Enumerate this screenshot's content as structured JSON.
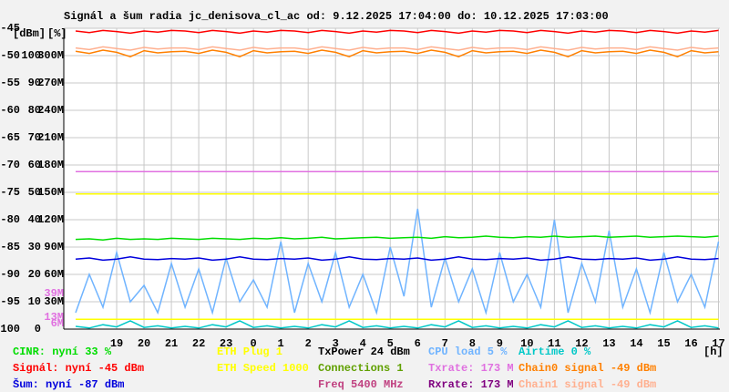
{
  "chart_data": {
    "type": "line",
    "title": "Signál a šum radia jc_denisova_cl_ac od: 9.12.2025 17:04:00 do: 10.12.2025 17:03:00",
    "y_unit_labels": [
      "[dBm]",
      "[%]"
    ],
    "x_unit_label": "[h]",
    "xlim": [
      17.067,
      41.05
    ],
    "xticks": [
      19,
      20,
      21,
      22,
      23,
      {
        "value": 24,
        "label": "0"
      },
      {
        "value": 25,
        "label": "1"
      },
      {
        "value": 26,
        "label": "2"
      },
      {
        "value": 27,
        "label": "3"
      },
      {
        "value": 28,
        "label": "4"
      },
      {
        "value": 29,
        "label": "5"
      },
      {
        "value": 30,
        "label": "6"
      },
      {
        "value": 31,
        "label": "7"
      },
      {
        "value": 32,
        "label": "8"
      },
      {
        "value": 33,
        "label": "9"
      },
      {
        "value": 34,
        "label": "10"
      },
      {
        "value": 35,
        "label": "11"
      },
      {
        "value": 36,
        "label": "12"
      },
      {
        "value": 37,
        "label": "13"
      },
      {
        "value": 38,
        "label": "14"
      },
      {
        "value": 39,
        "label": "15"
      },
      {
        "value": 40,
        "label": "16"
      },
      {
        "value": 41,
        "label": "17"
      }
    ],
    "ylim": [
      -100,
      -45
    ],
    "yticks": [
      -100,
      -95,
      -90,
      -85,
      -80,
      -75,
      -70,
      -65,
      -60,
      -55,
      -50,
      -45
    ],
    "y2lim": [
      0,
      110
    ],
    "y2ticks": [
      0,
      10,
      20,
      30,
      40,
      50,
      60,
      70,
      80,
      90,
      100
    ],
    "y3lim": [
      0,
      330
    ],
    "y3ticks": [
      {
        "value": 30,
        "label": "30M"
      },
      {
        "value": 60,
        "label": "60M"
      },
      {
        "value": 90,
        "label": "90M"
      },
      {
        "value": 120,
        "label": "120M"
      },
      {
        "value": 150,
        "label": "150M"
      },
      {
        "value": 180,
        "label": "180M"
      },
      {
        "value": 210,
        "label": "210M"
      },
      {
        "value": 240,
        "label": "240M"
      },
      {
        "value": 270,
        "label": "270M"
      },
      {
        "value": 300,
        "label": "300M"
      }
    ],
    "y3_markers": [
      {
        "value": 39,
        "label": "39M"
      },
      {
        "value": 13,
        "label": "13M"
      },
      {
        "value": 6,
        "label": "6M"
      }
    ],
    "y3_marker_color": "#e070e0",
    "grid": true,
    "x": [
      17.5,
      18,
      18.5,
      19,
      19.5,
      20,
      20.5,
      21,
      21.5,
      22,
      22.5,
      23,
      23.5,
      24,
      24.5,
      25,
      25.5,
      26,
      26.5,
      27,
      27.5,
      28,
      28.5,
      29,
      29.5,
      30,
      30.5,
      31,
      31.5,
      32,
      32.5,
      33,
      33.5,
      34,
      34.5,
      35,
      35.5,
      36,
      36.5,
      37,
      37.5,
      38,
      38.5,
      39,
      39.5,
      40,
      40.5,
      41
    ],
    "series": [
      {
        "name": "CINR: nyní 33 %",
        "color": "#00dd00",
        "values": [
          -83.6,
          -83.5,
          -83.7,
          -83.4,
          -83.6,
          -83.5,
          -83.6,
          -83.4,
          -83.5,
          -83.6,
          -83.4,
          -83.5,
          -83.6,
          -83.4,
          -83.5,
          -83.3,
          -83.5,
          -83.4,
          -83.2,
          -83.5,
          -83.4,
          -83.3,
          -83.2,
          -83.4,
          -83.3,
          -83.2,
          -83.4,
          -83.1,
          -83.3,
          -83.2,
          -83.0,
          -83.2,
          -83.3,
          -83.1,
          -83.2,
          -83.0,
          -83.2,
          -83.1,
          -83.0,
          -83.2,
          -83.1,
          -83.0,
          -83.2,
          -83.1,
          -83.0,
          -83.1,
          -83.2,
          -83.0
        ]
      },
      {
        "name": "Signál: nyní -45 dBm",
        "color": "#ff0000",
        "values": [
          -45.5,
          -45.8,
          -45.4,
          -45.6,
          -45.9,
          -45.5,
          -45.7,
          -45.4,
          -45.5,
          -45.8,
          -45.4,
          -45.6,
          -45.9,
          -45.5,
          -45.7,
          -45.4,
          -45.5,
          -45.8,
          -45.4,
          -45.6,
          -45.9,
          -45.5,
          -45.7,
          -45.4,
          -45.5,
          -45.8,
          -45.4,
          -45.6,
          -45.9,
          -45.5,
          -45.7,
          -45.4,
          -45.5,
          -45.8,
          -45.4,
          -45.6,
          -45.9,
          -45.5,
          -45.7,
          -45.4,
          -45.5,
          -45.8,
          -45.4,
          -45.6,
          -45.9,
          -45.5,
          -45.7,
          -45.4
        ]
      },
      {
        "name": "Šum: nyní -87 dBm",
        "color": "#0000dd",
        "values": [
          -87.2,
          -87.0,
          -87.4,
          -87.2,
          -86.8,
          -87.2,
          -87.3,
          -87.1,
          -87.2,
          -87.0,
          -87.4,
          -87.2,
          -86.8,
          -87.2,
          -87.3,
          -87.1,
          -87.2,
          -87.0,
          -87.4,
          -87.2,
          -86.8,
          -87.2,
          -87.3,
          -87.1,
          -87.2,
          -87.0,
          -87.4,
          -87.2,
          -86.8,
          -87.2,
          -87.3,
          -87.1,
          -87.2,
          -87.0,
          -87.4,
          -87.2,
          -86.8,
          -87.2,
          -87.3,
          -87.1,
          -87.2,
          -87.0,
          -87.4,
          -87.2,
          -86.8,
          -87.2,
          -87.3,
          -87.1
        ]
      },
      {
        "name": "ETH Plug 1",
        "color": "#ffff00",
        "values": [
          -98.2,
          -98.2,
          -98.2,
          -98.2,
          -98.2,
          -98.2,
          -98.2,
          -98.2,
          -98.2,
          -98.2,
          -98.2,
          -98.2,
          -98.2,
          -98.2,
          -98.2,
          -98.2,
          -98.2,
          -98.2,
          -98.2,
          -98.2,
          -98.2,
          -98.2,
          -98.2,
          -98.2,
          -98.2,
          -98.2,
          -98.2,
          -98.2,
          -98.2,
          -98.2,
          -98.2,
          -98.2,
          -98.2,
          -98.2,
          -98.2,
          -98.2,
          -98.2,
          -98.2,
          -98.2,
          -98.2,
          -98.2,
          -98.2,
          -98.2,
          -98.2,
          -98.2,
          -98.2,
          -98.2,
          -98.2
        ]
      },
      {
        "name": "ETH Speed 1000",
        "color": "#ffff00",
        "values": [
          -75.3,
          -75.3,
          -75.3,
          -75.3,
          -75.3,
          -75.3,
          -75.3,
          -75.3,
          -75.3,
          -75.3,
          -75.3,
          -75.3,
          -75.3,
          -75.3,
          -75.3,
          -75.3,
          -75.3,
          -75.3,
          -75.3,
          -75.3,
          -75.3,
          -75.3,
          -75.3,
          -75.3,
          -75.3,
          -75.3,
          -75.3,
          -75.3,
          -75.3,
          -75.3,
          -75.3,
          -75.3,
          -75.3,
          -75.3,
          -75.3,
          -75.3,
          -75.3,
          -75.3,
          -75.3,
          -75.3,
          -75.3,
          -75.3,
          -75.3,
          -75.3,
          -75.3,
          -75.3,
          -75.3,
          -75.3
        ]
      },
      {
        "name": "CPU load 5 %",
        "color": "#70b4ff",
        "values": [
          -97,
          -90,
          -96,
          -86,
          -95,
          -92,
          -97,
          -88,
          -96,
          -89,
          -97,
          -87,
          -95,
          -91,
          -96,
          -84,
          -97,
          -88,
          -95,
          -86,
          -96,
          -90,
          -97,
          -85,
          -94,
          -78,
          -96,
          -87,
          -95,
          -89,
          -97,
          -86,
          -95,
          -90,
          -96,
          -80,
          -97,
          -88,
          -95,
          -82,
          -96,
          -89,
          -97,
          -86,
          -95,
          -90,
          -96,
          -84
        ]
      },
      {
        "name": "Txrate: 173 M",
        "color": "#e070e0",
        "values": [
          -71.2,
          -71.2,
          -71.2,
          -71.2,
          -71.2,
          -71.2,
          -71.2,
          -71.2,
          -71.2,
          -71.2,
          -71.2,
          -71.2,
          -71.2,
          -71.2,
          -71.2,
          -71.2,
          -71.2,
          -71.2,
          -71.2,
          -71.2,
          -71.2,
          -71.2,
          -71.2,
          -71.2,
          -71.2,
          -71.2,
          -71.2,
          -71.2,
          -71.2,
          -71.2,
          -71.2,
          -71.2,
          -71.2,
          -71.2,
          -71.2,
          -71.2,
          -71.2,
          -71.2,
          -71.2,
          -71.2,
          -71.2,
          -71.2,
          -71.2,
          -71.2,
          -71.2,
          -71.2,
          -71.2,
          -71.2
        ]
      },
      {
        "name": "Rxrate: 173 M",
        "color": "#800080",
        "values": [
          -71.2,
          -71.2,
          -71.2,
          -71.2,
          -71.2,
          -71.2,
          -71.2,
          -71.2,
          -71.2,
          -71.2,
          -71.2,
          -71.2,
          -71.2,
          -71.2,
          -71.2,
          -71.2,
          -71.2,
          -71.2,
          -71.2,
          -71.2,
          -71.2,
          -71.2,
          -71.2,
          -71.2,
          -71.2,
          -71.2,
          -71.2,
          -71.2,
          -71.2,
          -71.2,
          -71.2,
          -71.2,
          -71.2,
          -71.2,
          -71.2,
          -71.2,
          -71.2,
          -71.2,
          -71.2,
          -71.2,
          -71.2,
          -71.2,
          -71.2,
          -71.2,
          -71.2,
          -71.2,
          -71.2,
          -71.2
        ]
      },
      {
        "name": "Airtime 0 %",
        "color": "#00c8c8",
        "values": [
          -99.5,
          -99.8,
          -99.2,
          -99.6,
          -98.5,
          -99.7,
          -99.4,
          -99.8,
          -99.5,
          -99.8,
          -99.2,
          -99.6,
          -98.5,
          -99.7,
          -99.4,
          -99.8,
          -99.5,
          -99.8,
          -99.2,
          -99.6,
          -98.5,
          -99.7,
          -99.4,
          -99.8,
          -99.5,
          -99.8,
          -99.2,
          -99.6,
          -98.5,
          -99.7,
          -99.4,
          -99.8,
          -99.5,
          -99.8,
          -99.2,
          -99.6,
          -98.5,
          -99.7,
          -99.4,
          -99.8,
          -99.5,
          -99.8,
          -99.2,
          -99.6,
          -98.5,
          -99.7,
          -99.4,
          -99.8
        ]
      },
      {
        "name": "Chain0 signal -49 dBm",
        "color": "#ff8000",
        "values": [
          -49.2,
          -49.6,
          -49.0,
          -49.4,
          -50.2,
          -49.1,
          -49.5,
          -49.3,
          -49.2,
          -49.6,
          -49.0,
          -49.4,
          -50.2,
          -49.1,
          -49.5,
          -49.3,
          -49.2,
          -49.6,
          -49.0,
          -49.4,
          -50.2,
          -49.1,
          -49.5,
          -49.3,
          -49.2,
          -49.6,
          -49.0,
          -49.4,
          -50.2,
          -49.1,
          -49.5,
          -49.3,
          -49.2,
          -49.6,
          -49.0,
          -49.4,
          -50.2,
          -49.1,
          -49.5,
          -49.3,
          -49.2,
          -49.6,
          -49.0,
          -49.4,
          -50.2,
          -49.1,
          -49.5,
          -49.3
        ]
      },
      {
        "name": "Chain1 signal -49 dBm",
        "color": "#ffb090",
        "values": [
          -48.6,
          -48.9,
          -48.4,
          -48.7,
          -49.0,
          -48.5,
          -48.8,
          -48.6,
          -48.6,
          -48.9,
          -48.4,
          -48.7,
          -49.0,
          -48.5,
          -48.8,
          -48.6,
          -48.6,
          -48.9,
          -48.4,
          -48.7,
          -49.0,
          -48.5,
          -48.8,
          -48.6,
          -48.6,
          -48.9,
          -48.4,
          -48.7,
          -49.0,
          -48.5,
          -48.8,
          -48.6,
          -48.6,
          -48.9,
          -48.4,
          -48.7,
          -49.0,
          -48.5,
          -48.8,
          -48.6,
          -48.6,
          -48.9,
          -48.4,
          -48.7,
          -49.0,
          -48.5,
          -48.8,
          -48.6
        ]
      }
    ],
    "info": [
      {
        "text": "TxPower 24 dBm",
        "color": "#000000"
      },
      {
        "text": "Connections 1",
        "color": "#60a000"
      },
      {
        "text": "Freq 5400 MHz",
        "color": "#c04080"
      }
    ]
  }
}
